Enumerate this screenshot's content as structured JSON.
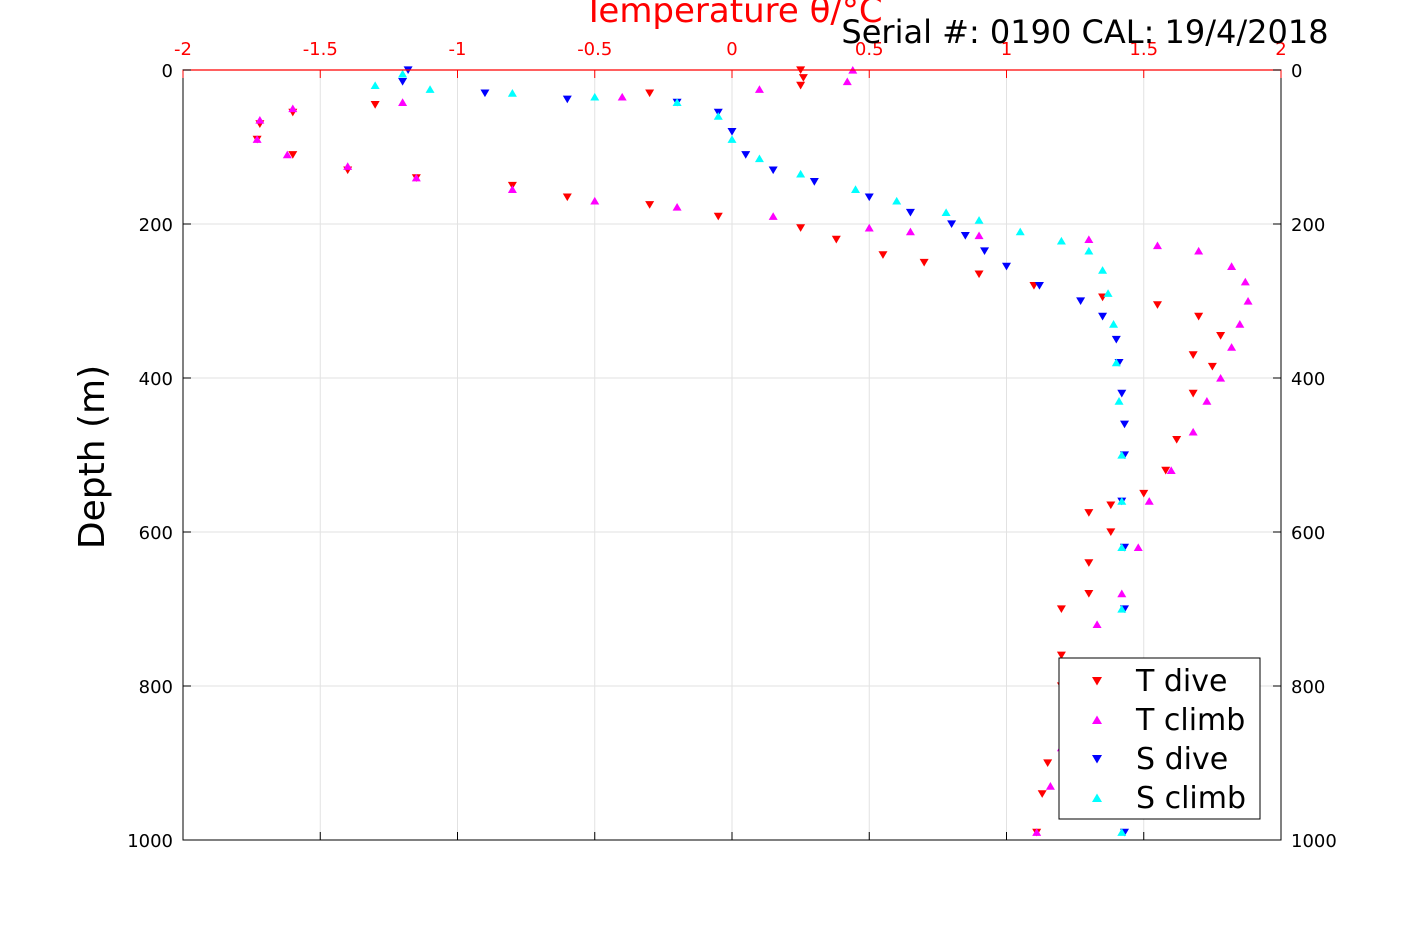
{
  "chart_data": {
    "type": "scatter",
    "title": "Serial #: 0190  CAL: 19/4/2018",
    "top_xlabel": "Temperature θ/°C",
    "ylabel": "Depth (m)",
    "xlim": [
      -2,
      2
    ],
    "ylim": [
      0,
      1000
    ],
    "y_reversed": true,
    "x_ticks": [
      -2,
      -1.5,
      -1,
      -0.5,
      0,
      0.5,
      1,
      1.5,
      2
    ],
    "x_tick_labels": [
      "-2",
      "-1.5",
      "-1",
      "-0.5",
      "0",
      "0.5",
      "1",
      "1.5",
      "2"
    ],
    "y_ticks": [
      0,
      200,
      400,
      600,
      800,
      1000
    ],
    "y_tick_labels": [
      "0",
      "200",
      "400",
      "600",
      "800",
      "1000"
    ],
    "grid": true,
    "legend_position": "bottom-right",
    "series": [
      {
        "name": "T dive",
        "color": "#ff0000",
        "marker": "triangle-down",
        "points": [
          [
            0.25,
            0
          ],
          [
            0.26,
            10
          ],
          [
            0.25,
            20
          ],
          [
            -0.3,
            30
          ],
          [
            -1.3,
            45
          ],
          [
            -1.6,
            55
          ],
          [
            -1.72,
            70
          ],
          [
            -1.73,
            90
          ],
          [
            -1.6,
            110
          ],
          [
            -1.4,
            130
          ],
          [
            -1.15,
            140
          ],
          [
            -0.8,
            150
          ],
          [
            -0.6,
            165
          ],
          [
            -0.3,
            175
          ],
          [
            -0.05,
            190
          ],
          [
            0.25,
            205
          ],
          [
            0.38,
            220
          ],
          [
            0.55,
            240
          ],
          [
            0.7,
            250
          ],
          [
            0.9,
            265
          ],
          [
            1.1,
            280
          ],
          [
            1.35,
            295
          ],
          [
            1.55,
            305
          ],
          [
            1.7,
            320
          ],
          [
            1.78,
            345
          ],
          [
            1.68,
            370
          ],
          [
            1.75,
            385
          ],
          [
            1.68,
            420
          ],
          [
            1.62,
            480
          ],
          [
            1.58,
            520
          ],
          [
            1.5,
            550
          ],
          [
            1.38,
            565
          ],
          [
            1.3,
            575
          ],
          [
            1.38,
            600
          ],
          [
            1.3,
            640
          ],
          [
            1.3,
            680
          ],
          [
            1.2,
            700
          ],
          [
            1.2,
            760
          ],
          [
            1.2,
            800
          ],
          [
            1.15,
            900
          ],
          [
            1.13,
            940
          ],
          [
            1.11,
            990
          ]
        ]
      },
      {
        "name": "T climb",
        "color": "#ff00ff",
        "marker": "triangle-up",
        "points": [
          [
            0.44,
            0
          ],
          [
            0.42,
            15
          ],
          [
            0.1,
            25
          ],
          [
            -0.4,
            35
          ],
          [
            -1.2,
            42
          ],
          [
            -1.6,
            50
          ],
          [
            -1.72,
            65
          ],
          [
            -1.73,
            90
          ],
          [
            -1.62,
            110
          ],
          [
            -1.4,
            125
          ],
          [
            -1.15,
            140
          ],
          [
            -0.8,
            155
          ],
          [
            -0.5,
            170
          ],
          [
            -0.2,
            178
          ],
          [
            0.15,
            190
          ],
          [
            0.5,
            205
          ],
          [
            0.65,
            210
          ],
          [
            0.9,
            215
          ],
          [
            1.3,
            220
          ],
          [
            1.55,
            228
          ],
          [
            1.7,
            235
          ],
          [
            1.82,
            255
          ],
          [
            1.87,
            275
          ],
          [
            1.88,
            300
          ],
          [
            1.85,
            330
          ],
          [
            1.82,
            360
          ],
          [
            1.78,
            400
          ],
          [
            1.73,
            430
          ],
          [
            1.68,
            470
          ],
          [
            1.6,
            520
          ],
          [
            1.52,
            560
          ],
          [
            1.48,
            620
          ],
          [
            1.42,
            680
          ],
          [
            1.33,
            720
          ],
          [
            1.28,
            770
          ],
          [
            1.24,
            820
          ],
          [
            1.2,
            880
          ],
          [
            1.16,
            930
          ],
          [
            1.11,
            990
          ]
        ]
      },
      {
        "name": "S dive",
        "color": "#0000ff",
        "marker": "triangle-down",
        "points": [
          [
            -1.18,
            0
          ],
          [
            -1.2,
            15
          ],
          [
            -0.9,
            30
          ],
          [
            -0.6,
            38
          ],
          [
            -0.2,
            42
          ],
          [
            -0.05,
            55
          ],
          [
            0.0,
            80
          ],
          [
            0.05,
            110
          ],
          [
            0.15,
            130
          ],
          [
            0.3,
            145
          ],
          [
            0.5,
            165
          ],
          [
            0.65,
            185
          ],
          [
            0.8,
            200
          ],
          [
            0.85,
            215
          ],
          [
            0.92,
            235
          ],
          [
            1.0,
            255
          ],
          [
            1.12,
            280
          ],
          [
            1.27,
            300
          ],
          [
            1.35,
            320
          ],
          [
            1.4,
            350
          ],
          [
            1.41,
            380
          ],
          [
            1.42,
            420
          ],
          [
            1.43,
            460
          ],
          [
            1.43,
            500
          ],
          [
            1.42,
            560
          ],
          [
            1.43,
            620
          ],
          [
            1.43,
            700
          ],
          [
            1.43,
            800
          ],
          [
            1.43,
            900
          ],
          [
            1.43,
            990
          ]
        ]
      },
      {
        "name": "S climb",
        "color": "#00ffff",
        "marker": "triangle-up",
        "points": [
          [
            -1.3,
            20
          ],
          [
            -1.2,
            5
          ],
          [
            -1.1,
            25
          ],
          [
            -0.8,
            30
          ],
          [
            -0.5,
            35
          ],
          [
            -0.2,
            42
          ],
          [
            -0.05,
            60
          ],
          [
            0.0,
            90
          ],
          [
            0.1,
            115
          ],
          [
            0.25,
            135
          ],
          [
            0.45,
            155
          ],
          [
            0.6,
            170
          ],
          [
            0.78,
            185
          ],
          [
            0.9,
            195
          ],
          [
            1.05,
            210
          ],
          [
            1.2,
            222
          ],
          [
            1.3,
            235
          ],
          [
            1.35,
            260
          ],
          [
            1.37,
            290
          ],
          [
            1.39,
            330
          ],
          [
            1.4,
            380
          ],
          [
            1.41,
            430
          ],
          [
            1.42,
            500
          ],
          [
            1.42,
            560
          ],
          [
            1.42,
            620
          ],
          [
            1.42,
            700
          ],
          [
            1.42,
            800
          ],
          [
            1.42,
            900
          ],
          [
            1.42,
            990
          ]
        ]
      }
    ]
  }
}
